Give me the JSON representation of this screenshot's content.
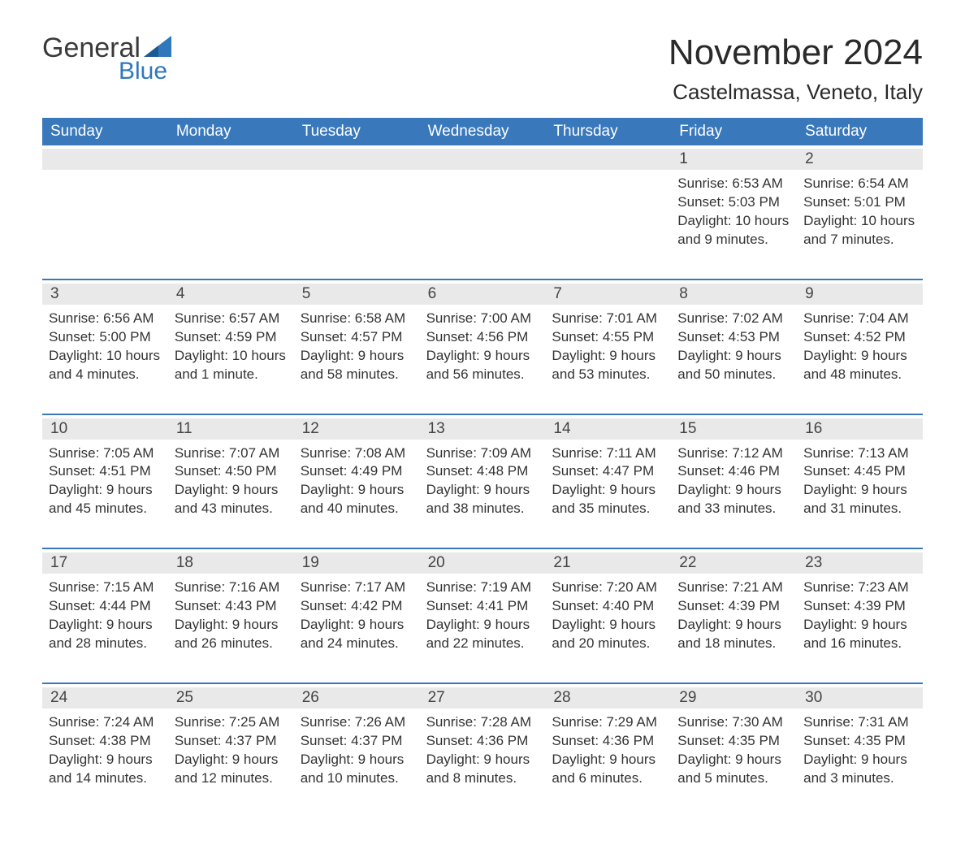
{
  "colors": {
    "header_bg": "#3878bb",
    "header_text": "#ffffff",
    "daynum_bg": "#e9e9e9",
    "week_border": "#3878bb",
    "page_bg": "#ffffff",
    "body_text": "#333333",
    "logo_gray": "#3a3a3a",
    "logo_blue": "#2f78bc"
  },
  "typography": {
    "month_title_fontsize": 44,
    "location_fontsize": 26,
    "dayname_fontsize": 19,
    "daynum_fontsize": 19,
    "info_fontsize": 17,
    "logo_fontsize": 34
  },
  "logo": {
    "line1": "General",
    "line2": "Blue"
  },
  "title": "November 2024",
  "location": "Castelmassa, Veneto, Italy",
  "day_names": [
    "Sunday",
    "Monday",
    "Tuesday",
    "Wednesday",
    "Thursday",
    "Friday",
    "Saturday"
  ],
  "type": "calendar-table",
  "columns": 7,
  "rows": 5,
  "weeks": [
    [
      null,
      null,
      null,
      null,
      null,
      {
        "n": "1",
        "sunrise": "Sunrise: 6:53 AM",
        "sunset": "Sunset: 5:03 PM",
        "dl1": "Daylight: 10 hours",
        "dl2": "and 9 minutes."
      },
      {
        "n": "2",
        "sunrise": "Sunrise: 6:54 AM",
        "sunset": "Sunset: 5:01 PM",
        "dl1": "Daylight: 10 hours",
        "dl2": "and 7 minutes."
      }
    ],
    [
      {
        "n": "3",
        "sunrise": "Sunrise: 6:56 AM",
        "sunset": "Sunset: 5:00 PM",
        "dl1": "Daylight: 10 hours",
        "dl2": "and 4 minutes."
      },
      {
        "n": "4",
        "sunrise": "Sunrise: 6:57 AM",
        "sunset": "Sunset: 4:59 PM",
        "dl1": "Daylight: 10 hours",
        "dl2": "and 1 minute."
      },
      {
        "n": "5",
        "sunrise": "Sunrise: 6:58 AM",
        "sunset": "Sunset: 4:57 PM",
        "dl1": "Daylight: 9 hours",
        "dl2": "and 58 minutes."
      },
      {
        "n": "6",
        "sunrise": "Sunrise: 7:00 AM",
        "sunset": "Sunset: 4:56 PM",
        "dl1": "Daylight: 9 hours",
        "dl2": "and 56 minutes."
      },
      {
        "n": "7",
        "sunrise": "Sunrise: 7:01 AM",
        "sunset": "Sunset: 4:55 PM",
        "dl1": "Daylight: 9 hours",
        "dl2": "and 53 minutes."
      },
      {
        "n": "8",
        "sunrise": "Sunrise: 7:02 AM",
        "sunset": "Sunset: 4:53 PM",
        "dl1": "Daylight: 9 hours",
        "dl2": "and 50 minutes."
      },
      {
        "n": "9",
        "sunrise": "Sunrise: 7:04 AM",
        "sunset": "Sunset: 4:52 PM",
        "dl1": "Daylight: 9 hours",
        "dl2": "and 48 minutes."
      }
    ],
    [
      {
        "n": "10",
        "sunrise": "Sunrise: 7:05 AM",
        "sunset": "Sunset: 4:51 PM",
        "dl1": "Daylight: 9 hours",
        "dl2": "and 45 minutes."
      },
      {
        "n": "11",
        "sunrise": "Sunrise: 7:07 AM",
        "sunset": "Sunset: 4:50 PM",
        "dl1": "Daylight: 9 hours",
        "dl2": "and 43 minutes."
      },
      {
        "n": "12",
        "sunrise": "Sunrise: 7:08 AM",
        "sunset": "Sunset: 4:49 PM",
        "dl1": "Daylight: 9 hours",
        "dl2": "and 40 minutes."
      },
      {
        "n": "13",
        "sunrise": "Sunrise: 7:09 AM",
        "sunset": "Sunset: 4:48 PM",
        "dl1": "Daylight: 9 hours",
        "dl2": "and 38 minutes."
      },
      {
        "n": "14",
        "sunrise": "Sunrise: 7:11 AM",
        "sunset": "Sunset: 4:47 PM",
        "dl1": "Daylight: 9 hours",
        "dl2": "and 35 minutes."
      },
      {
        "n": "15",
        "sunrise": "Sunrise: 7:12 AM",
        "sunset": "Sunset: 4:46 PM",
        "dl1": "Daylight: 9 hours",
        "dl2": "and 33 minutes."
      },
      {
        "n": "16",
        "sunrise": "Sunrise: 7:13 AM",
        "sunset": "Sunset: 4:45 PM",
        "dl1": "Daylight: 9 hours",
        "dl2": "and 31 minutes."
      }
    ],
    [
      {
        "n": "17",
        "sunrise": "Sunrise: 7:15 AM",
        "sunset": "Sunset: 4:44 PM",
        "dl1": "Daylight: 9 hours",
        "dl2": "and 28 minutes."
      },
      {
        "n": "18",
        "sunrise": "Sunrise: 7:16 AM",
        "sunset": "Sunset: 4:43 PM",
        "dl1": "Daylight: 9 hours",
        "dl2": "and 26 minutes."
      },
      {
        "n": "19",
        "sunrise": "Sunrise: 7:17 AM",
        "sunset": "Sunset: 4:42 PM",
        "dl1": "Daylight: 9 hours",
        "dl2": "and 24 minutes."
      },
      {
        "n": "20",
        "sunrise": "Sunrise: 7:19 AM",
        "sunset": "Sunset: 4:41 PM",
        "dl1": "Daylight: 9 hours",
        "dl2": "and 22 minutes."
      },
      {
        "n": "21",
        "sunrise": "Sunrise: 7:20 AM",
        "sunset": "Sunset: 4:40 PM",
        "dl1": "Daylight: 9 hours",
        "dl2": "and 20 minutes."
      },
      {
        "n": "22",
        "sunrise": "Sunrise: 7:21 AM",
        "sunset": "Sunset: 4:39 PM",
        "dl1": "Daylight: 9 hours",
        "dl2": "and 18 minutes."
      },
      {
        "n": "23",
        "sunrise": "Sunrise: 7:23 AM",
        "sunset": "Sunset: 4:39 PM",
        "dl1": "Daylight: 9 hours",
        "dl2": "and 16 minutes."
      }
    ],
    [
      {
        "n": "24",
        "sunrise": "Sunrise: 7:24 AM",
        "sunset": "Sunset: 4:38 PM",
        "dl1": "Daylight: 9 hours",
        "dl2": "and 14 minutes."
      },
      {
        "n": "25",
        "sunrise": "Sunrise: 7:25 AM",
        "sunset": "Sunset: 4:37 PM",
        "dl1": "Daylight: 9 hours",
        "dl2": "and 12 minutes."
      },
      {
        "n": "26",
        "sunrise": "Sunrise: 7:26 AM",
        "sunset": "Sunset: 4:37 PM",
        "dl1": "Daylight: 9 hours",
        "dl2": "and 10 minutes."
      },
      {
        "n": "27",
        "sunrise": "Sunrise: 7:28 AM",
        "sunset": "Sunset: 4:36 PM",
        "dl1": "Daylight: 9 hours",
        "dl2": "and 8 minutes."
      },
      {
        "n": "28",
        "sunrise": "Sunrise: 7:29 AM",
        "sunset": "Sunset: 4:36 PM",
        "dl1": "Daylight: 9 hours",
        "dl2": "and 6 minutes."
      },
      {
        "n": "29",
        "sunrise": "Sunrise: 7:30 AM",
        "sunset": "Sunset: 4:35 PM",
        "dl1": "Daylight: 9 hours",
        "dl2": "and 5 minutes."
      },
      {
        "n": "30",
        "sunrise": "Sunrise: 7:31 AM",
        "sunset": "Sunset: 4:35 PM",
        "dl1": "Daylight: 9 hours",
        "dl2": "and 3 minutes."
      }
    ]
  ]
}
